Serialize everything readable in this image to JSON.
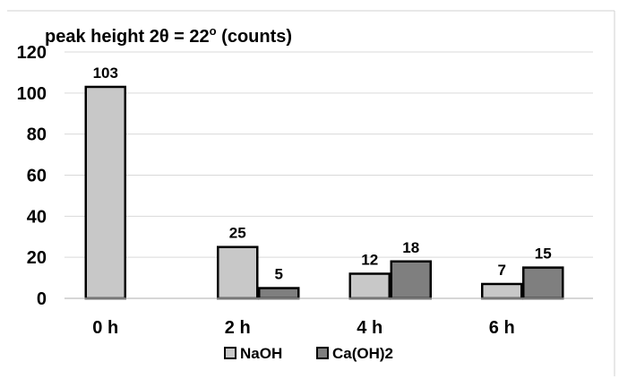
{
  "chart_data": {
    "type": "bar",
    "title": "peak height 2θ = 22",
    "title_superscript": "o",
    "title_suffix": " (counts)",
    "categories": [
      "0 h",
      "2 h",
      "4 h",
      "6 h"
    ],
    "series": [
      {
        "name": "NaOH",
        "values": [
          103,
          25,
          12,
          7
        ],
        "color": "#c8c8c8"
      },
      {
        "name": "Ca(OH)2",
        "values": [
          null,
          5,
          18,
          15
        ],
        "color": "#7f7f7f"
      }
    ],
    "data_labels": [
      [
        "103",
        "25",
        "12",
        "7"
      ],
      [
        "",
        "5",
        "18",
        "15"
      ]
    ],
    "ylim": [
      0,
      120
    ],
    "yticks": [
      "0",
      "20",
      "40",
      "60",
      "80",
      "100",
      "120"
    ],
    "ytick_values": [
      0,
      20,
      40,
      60,
      80,
      100,
      120
    ],
    "xlabel": "",
    "ylabel": "",
    "grid": true,
    "legend_position": "bottom"
  }
}
